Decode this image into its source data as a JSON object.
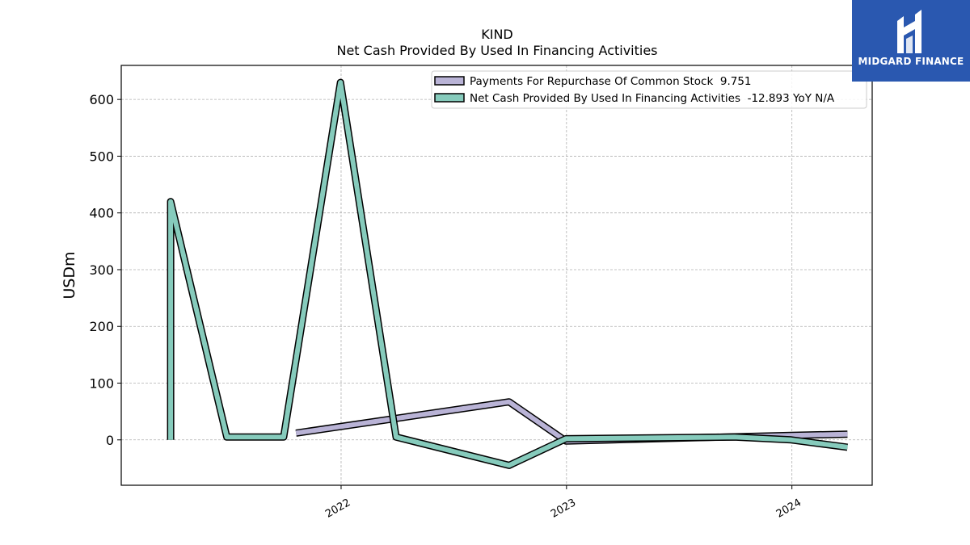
{
  "logo": {
    "text": "MIDGARD FINANCE",
    "color": "#2a58b0"
  },
  "chart_data": {
    "type": "line",
    "title": "KIND",
    "subtitle": "Net Cash Provided By Used In Financing Activities",
    "ylabel": "USDm",
    "xlabel": "",
    "ylim": [
      -80,
      660
    ],
    "xlim": [
      "2021-01-10",
      "2024-05-10"
    ],
    "yticks": [
      0,
      100,
      200,
      300,
      400,
      500,
      600
    ],
    "xticks": [
      {
        "date": "2022-01-01",
        "label": "2022"
      },
      {
        "date": "2023-01-01",
        "label": "2023"
      },
      {
        "date": "2024-01-01",
        "label": "2024"
      }
    ],
    "grid": true,
    "legend_position": "top-right",
    "series": [
      {
        "name": "Payments For Repurchase Of Common Stock  9.751",
        "color": "#b9b3d6",
        "points": [
          {
            "x": "2021-10-20",
            "y": 12
          },
          {
            "x": "2022-09-30",
            "y": 67
          },
          {
            "x": "2022-12-31",
            "y": -2
          },
          {
            "x": "2023-12-31",
            "y": 8
          },
          {
            "x": "2024-03-31",
            "y": 10
          }
        ]
      },
      {
        "name": "Net Cash Provided By Used In Financing Activities  -12.893 YoY N/A",
        "color": "#86cbbc",
        "points": [
          {
            "x": "2021-03-31",
            "y": 0
          },
          {
            "x": "2021-03-31",
            "y": 420
          },
          {
            "x": "2021-06-30",
            "y": 5
          },
          {
            "x": "2021-09-30",
            "y": 5
          },
          {
            "x": "2021-12-31",
            "y": 630
          },
          {
            "x": "2022-03-31",
            "y": 5
          },
          {
            "x": "2022-09-30",
            "y": -45
          },
          {
            "x": "2022-12-31",
            "y": 2
          },
          {
            "x": "2023-09-30",
            "y": 5
          },
          {
            "x": "2023-12-31",
            "y": 0
          },
          {
            "x": "2024-03-31",
            "y": -13
          }
        ]
      }
    ]
  }
}
